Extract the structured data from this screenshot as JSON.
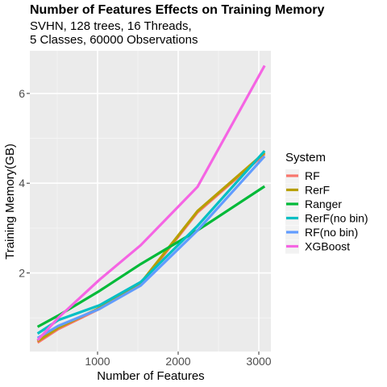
{
  "chart_data": {
    "type": "line",
    "title": "Number of Features Effects on Training Memory",
    "subtitle_lines": [
      "SVHN, 128 trees, 16 Threads,",
      "5 Classes, 60000 Observations"
    ],
    "xlabel": "Number of Features",
    "ylabel": "Training Memory(GB)",
    "xlim": [
      160,
      3150
    ],
    "ylim": [
      0.25,
      6.95
    ],
    "xticks": [
      1000,
      2000,
      3000
    ],
    "yticks": [
      2,
      4,
      6
    ],
    "grid": true,
    "legend_title": "System",
    "legend_position": "right",
    "x": [
      256,
      512,
      1024,
      1536,
      2240,
      3072
    ],
    "series": [
      {
        "name": "RF",
        "color": "#F8766D",
        "values": [
          0.45,
          0.75,
          1.2,
          1.75,
          3.35,
          4.65
        ]
      },
      {
        "name": "RerF",
        "color": "#B79F00",
        "values": [
          0.48,
          0.78,
          1.22,
          1.78,
          3.38,
          4.68
        ]
      },
      {
        "name": "Ranger",
        "color": "#00BA38",
        "values": [
          0.8,
          1.05,
          1.6,
          2.2,
          2.95,
          3.93
        ]
      },
      {
        "name": "RerF(no bin)",
        "color": "#00BFC4",
        "values": [
          0.65,
          0.95,
          1.28,
          1.8,
          3.05,
          4.72
        ]
      },
      {
        "name": "RF(no bin)",
        "color": "#619CFF",
        "values": [
          0.55,
          0.82,
          1.2,
          1.72,
          2.95,
          4.6
        ]
      },
      {
        "name": "XGBoost",
        "color": "#F564E3",
        "values": [
          0.5,
          1.0,
          1.85,
          2.62,
          3.92,
          6.62
        ]
      }
    ]
  }
}
